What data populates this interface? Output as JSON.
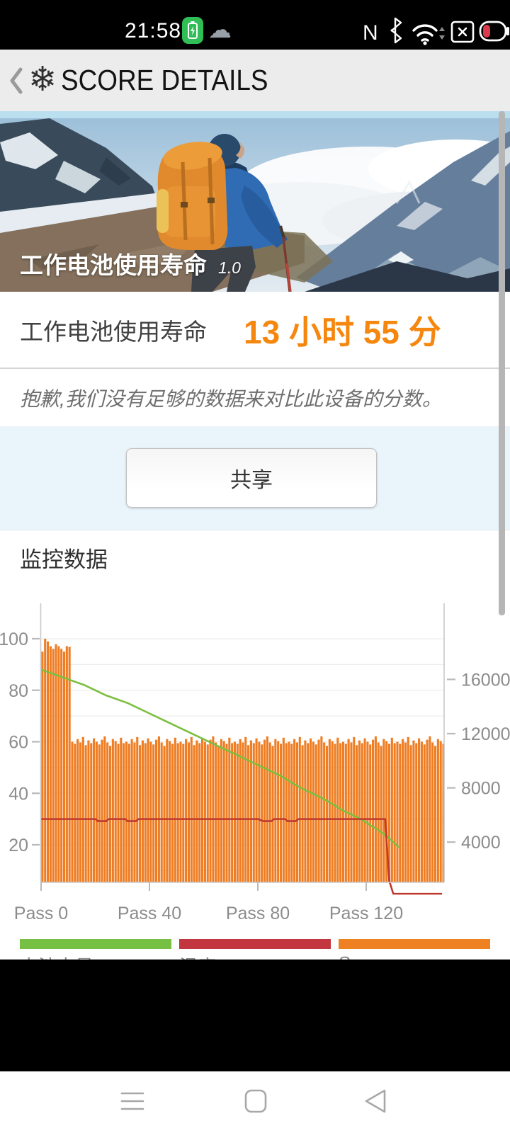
{
  "status_bar": {
    "time": "21:58",
    "icons": [
      "battery-saver",
      "cloud",
      "nfc",
      "bluetooth",
      "wifi",
      "no-sim",
      "battery-low"
    ],
    "nfc_glyph": "N"
  },
  "header": {
    "title": "SCORE DETAILS"
  },
  "hero": {
    "test_name": "工作电池使用寿命",
    "version": "1.0"
  },
  "result": {
    "label": "工作电池使用寿命",
    "value": "13 小时 55 分",
    "value_color": "#f5870f"
  },
  "notice_text": "抱歉,我们没有足够的数据来对比此设备的分数。",
  "share_button_label": "共享",
  "monitoring_title": "监控数据",
  "legend": [
    {
      "label": "电池电量 %",
      "color": "#76c043"
    },
    {
      "label": "温度 °C",
      "color": "#c2363f"
    },
    {
      "label": "Score per pass",
      "color": "#ee8122"
    }
  ],
  "chart_data": {
    "type": "bar",
    "subtype": "combo-bar-line",
    "x_tick_labels": [
      "Pass 0",
      "Pass 40",
      "Pass 80",
      "Pass 120"
    ],
    "x_tick_passes": [
      0,
      40,
      80,
      120
    ],
    "left_axis_ticks": [
      100,
      80,
      60,
      40,
      20
    ],
    "right_axis_ticks": [
      16000,
      12000,
      8000,
      4000
    ],
    "right_per_left_unit": 190,
    "grid_step": 10,
    "grid_on": true,
    "legend_position": "bottom",
    "series": [
      {
        "name": "Score per pass",
        "type": "bar",
        "axis": "right",
        "color": "#ee7d23",
        "values": [
          18050,
          19000,
          18800,
          18450,
          18250,
          18600,
          18450,
          18250,
          18050,
          18450,
          18400,
          11400,
          11250,
          11600,
          11350,
          11750,
          11150,
          11500,
          11300,
          11650,
          11400,
          11200,
          11550,
          11800,
          11350,
          11100,
          11600,
          11450,
          11250,
          11700,
          11300,
          11400,
          11250,
          11600,
          11350,
          11750,
          11150,
          11500,
          11300,
          11650,
          11400,
          11200,
          11550,
          11800,
          11350,
          11100,
          11600,
          11450,
          11250,
          11700,
          11300,
          11400,
          11250,
          11600,
          11350,
          11750,
          11150,
          11500,
          11300,
          11650,
          11400,
          11200,
          11550,
          11800,
          11350,
          11100,
          11600,
          11450,
          11250,
          11700,
          11300,
          11400,
          11250,
          11600,
          11350,
          11750,
          11150,
          11500,
          11300,
          11650,
          11400,
          11200,
          11550,
          11800,
          11350,
          11100,
          11600,
          11450,
          11250,
          11700,
          11300,
          11400,
          11250,
          11600,
          11350,
          11750,
          11150,
          11500,
          11300,
          11650,
          11400,
          11200,
          11550,
          11800,
          11350,
          11100,
          11600,
          11450,
          11250,
          11700,
          11300,
          11400,
          11250,
          11600,
          11350,
          11750,
          11150,
          11500,
          11300,
          11650,
          11400,
          11200,
          11550,
          11800,
          11350,
          11100,
          11600,
          11450,
          11250,
          11700,
          11300,
          11400,
          11250,
          11600,
          11350,
          11750,
          11150,
          11500,
          11300,
          11650,
          11400,
          11200,
          11550,
          11800,
          11350,
          11100,
          11600,
          11450,
          11250
        ]
      },
      {
        "name": "电池电量 %",
        "type": "line",
        "axis": "left",
        "color": "#7cbf3f",
        "points": [
          [
            0,
            88
          ],
          [
            8,
            85
          ],
          [
            16,
            82
          ],
          [
            24,
            78
          ],
          [
            32,
            75
          ],
          [
            40,
            71
          ],
          [
            48,
            67
          ],
          [
            56,
            63
          ],
          [
            64,
            59
          ],
          [
            72,
            55
          ],
          [
            80,
            51
          ],
          [
            88,
            47
          ],
          [
            96,
            42
          ],
          [
            104,
            38
          ],
          [
            112,
            33
          ],
          [
            118,
            30
          ],
          [
            124,
            26
          ],
          [
            128,
            23
          ],
          [
            132,
            19
          ]
        ]
      },
      {
        "name": "温度 °C",
        "type": "line",
        "axis": "left",
        "color": "#bf3a2e",
        "points": [
          [
            0,
            30
          ],
          [
            20,
            30
          ],
          [
            21,
            29.2
          ],
          [
            24,
            29.2
          ],
          [
            25,
            30
          ],
          [
            31,
            30
          ],
          [
            32,
            29.2
          ],
          [
            35,
            29.2
          ],
          [
            36,
            30
          ],
          [
            80,
            30
          ],
          [
            82,
            29.2
          ],
          [
            85,
            29.2
          ],
          [
            86,
            30
          ],
          [
            90,
            30
          ],
          [
            91,
            29.2
          ],
          [
            94,
            29.2
          ],
          [
            95,
            30
          ],
          [
            127,
            30
          ],
          [
            128.5,
            6
          ],
          [
            130,
            1
          ],
          [
            148,
            1
          ]
        ]
      }
    ]
  }
}
